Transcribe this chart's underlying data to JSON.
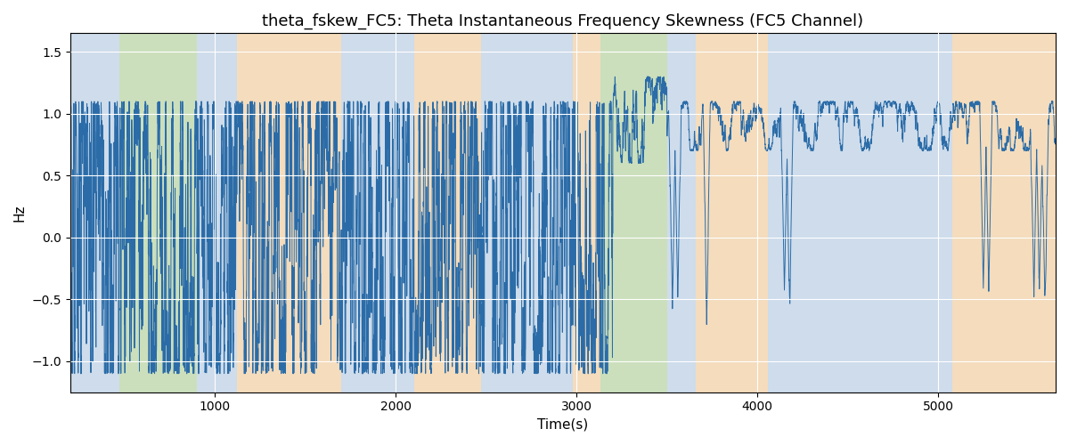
{
  "title": "theta_fskew_FC5: Theta Instantaneous Frequency Skewness (FC5 Channel)",
  "xlabel": "Time(s)",
  "ylabel": "Hz",
  "xlim": [
    200,
    5650
  ],
  "ylim": [
    -1.25,
    1.65
  ],
  "yticks": [
    -1.0,
    -0.5,
    0.0,
    0.5,
    1.0,
    1.5
  ],
  "line_color": "#2b6ca8",
  "line_width": 0.7,
  "background_bands": [
    {
      "xmin": 200,
      "xmax": 470,
      "color": "#aec9e8",
      "alpha": 0.5
    },
    {
      "xmin": 470,
      "xmax": 900,
      "color": "#a8d08a",
      "alpha": 0.5
    },
    {
      "xmin": 900,
      "xmax": 1120,
      "color": "#aec9e8",
      "alpha": 0.5
    },
    {
      "xmin": 1120,
      "xmax": 1700,
      "color": "#f9c98a",
      "alpha": 0.5
    },
    {
      "xmin": 1700,
      "xmax": 2100,
      "color": "#aec9e8",
      "alpha": 0.5
    },
    {
      "xmin": 2100,
      "xmax": 2470,
      "color": "#f9c98a",
      "alpha": 0.5
    },
    {
      "xmin": 2470,
      "xmax": 2980,
      "color": "#aec9e8",
      "alpha": 0.5
    },
    {
      "xmin": 2980,
      "xmax": 3130,
      "color": "#f9c98a",
      "alpha": 0.5
    },
    {
      "xmin": 3130,
      "xmax": 3500,
      "color": "#a8d08a",
      "alpha": 0.5
    },
    {
      "xmin": 3500,
      "xmax": 3660,
      "color": "#aec9e8",
      "alpha": 0.5
    },
    {
      "xmin": 3660,
      "xmax": 4060,
      "color": "#f9c98a",
      "alpha": 0.5
    },
    {
      "xmin": 4060,
      "xmax": 4900,
      "color": "#aec9e8",
      "alpha": 0.5
    },
    {
      "xmin": 4900,
      "xmax": 5080,
      "color": "#aec9e8",
      "alpha": 0.5
    },
    {
      "xmin": 5080,
      "xmax": 5650,
      "color": "#f9c98a",
      "alpha": 0.5
    }
  ],
  "title_fontsize": 13,
  "label_fontsize": 11
}
